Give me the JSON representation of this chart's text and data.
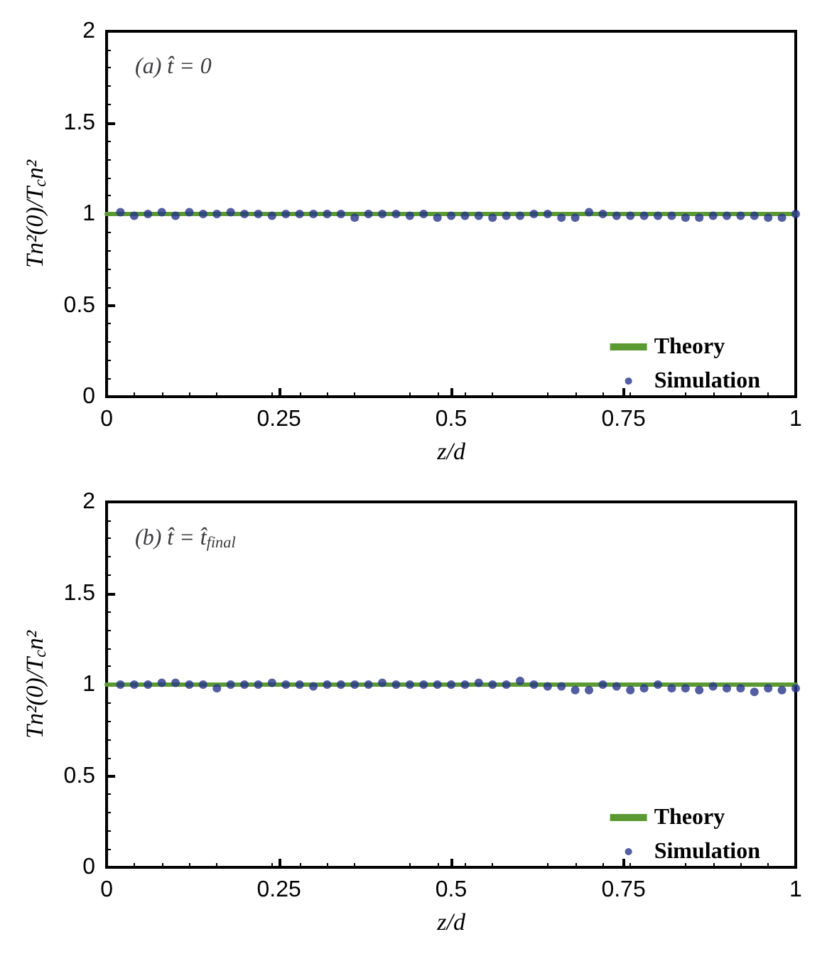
{
  "chart_data": [
    {
      "type": "line",
      "title": "(a) t̂ = 0",
      "xlabel": "z/d",
      "ylabel": "Tn²(0)/T$_{c}$n²",
      "xlim": [
        0,
        1
      ],
      "xticks": [
        0,
        0.25,
        0.5,
        0.75,
        1
      ],
      "ylim": [
        0,
        2
      ],
      "yticks": [
        0,
        0.5,
        1,
        1.5,
        2
      ],
      "grid": false,
      "legend": "bottom right",
      "series": [
        {
          "name": "Theory",
          "color": "#5b9a32",
          "marker": "none",
          "line_style": "solid",
          "x": [
            0,
            1
          ],
          "values": [
            1,
            1
          ]
        },
        {
          "name": "Simulation",
          "type": "scatter",
          "color": "#27348b",
          "marker": "circle",
          "x": [
            0.02,
            0.04,
            0.06,
            0.08,
            0.1,
            0.12,
            0.14,
            0.16,
            0.18,
            0.2,
            0.22,
            0.24,
            0.26,
            0.28,
            0.3,
            0.32,
            0.34,
            0.36,
            0.38,
            0.4,
            0.42,
            0.44,
            0.46,
            0.48,
            0.5,
            0.52,
            0.54,
            0.56,
            0.58,
            0.6,
            0.62,
            0.64,
            0.66,
            0.68,
            0.7,
            0.72,
            0.74,
            0.76,
            0.78,
            0.8,
            0.82,
            0.84,
            0.86,
            0.88,
            0.9,
            0.92,
            0.94,
            0.96,
            0.98,
            1.0
          ],
          "values": [
            1.01,
            0.99,
            1.0,
            1.01,
            0.99,
            1.01,
            1.0,
            1.0,
            1.01,
            1.0,
            1.0,
            0.99,
            1.0,
            1.0,
            1.0,
            1.0,
            1.0,
            0.98,
            1.0,
            1.0,
            1.0,
            0.99,
            1.0,
            0.98,
            0.99,
            0.99,
            0.99,
            0.98,
            0.99,
            0.99,
            1.0,
            1.0,
            0.98,
            0.98,
            1.01,
            1.0,
            0.99,
            0.99,
            0.99,
            0.99,
            0.99,
            0.98,
            0.98,
            0.99,
            0.99,
            0.99,
            0.99,
            0.98,
            0.98,
            1.0
          ]
        }
      ]
    },
    {
      "type": "line",
      "title": "(b) t̂ = t̂$_{final}$",
      "xlabel": "z/d",
      "ylabel": "Tn²(0)/T$_{c}$n²",
      "xlim": [
        0,
        1
      ],
      "xticks": [
        0,
        0.25,
        0.5,
        0.75,
        1
      ],
      "ylim": [
        0,
        2
      ],
      "yticks": [
        0,
        0.5,
        1,
        1.5,
        2
      ],
      "grid": false,
      "legend": "bottom right",
      "series": [
        {
          "name": "Theory",
          "color": "#5b9a32",
          "marker": "none",
          "line_style": "solid",
          "x": [
            0,
            1
          ],
          "values": [
            1,
            1
          ]
        },
        {
          "name": "Simulation",
          "type": "scatter",
          "color": "#27348b",
          "marker": "circle",
          "x": [
            0.02,
            0.04,
            0.06,
            0.08,
            0.1,
            0.12,
            0.14,
            0.16,
            0.18,
            0.2,
            0.22,
            0.24,
            0.26,
            0.28,
            0.3,
            0.32,
            0.34,
            0.36,
            0.38,
            0.4,
            0.42,
            0.44,
            0.46,
            0.48,
            0.5,
            0.52,
            0.54,
            0.56,
            0.58,
            0.6,
            0.62,
            0.64,
            0.66,
            0.68,
            0.7,
            0.72,
            0.74,
            0.76,
            0.78,
            0.8,
            0.82,
            0.84,
            0.86,
            0.88,
            0.9,
            0.92,
            0.94,
            0.96,
            0.98,
            1.0
          ],
          "values": [
            1.0,
            1.0,
            1.0,
            1.01,
            1.01,
            1.0,
            1.0,
            0.98,
            1.0,
            1.0,
            1.0,
            1.01,
            1.0,
            1.0,
            0.99,
            1.0,
            1.0,
            1.0,
            1.0,
            1.01,
            1.0,
            1.0,
            1.0,
            1.0,
            1.0,
            1.0,
            1.01,
            1.0,
            1.0,
            1.02,
            1.0,
            0.99,
            0.99,
            0.97,
            0.97,
            1.0,
            0.99,
            0.97,
            0.98,
            1.0,
            0.98,
            0.98,
            0.97,
            0.99,
            0.98,
            0.98,
            0.96,
            0.98,
            0.97,
            0.98
          ]
        }
      ]
    }
  ]
}
